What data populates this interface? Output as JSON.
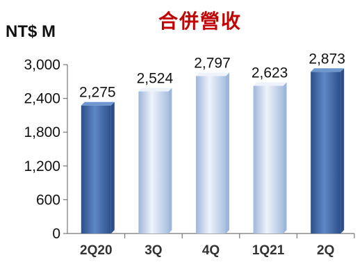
{
  "chart_data": {
    "type": "bar",
    "title": "合併營收",
    "unit_label": "NT$ M",
    "categories": [
      "2Q20",
      "3Q",
      "4Q",
      "1Q21",
      "2Q"
    ],
    "values": [
      2275,
      2524,
      2797,
      2623,
      2873
    ],
    "value_labels": [
      "2,275",
      "2,524",
      "2,797",
      "2,623",
      "2,873"
    ],
    "bar_styles": [
      "dark",
      "light",
      "light",
      "light",
      "dark"
    ],
    "yticks": [
      0,
      600,
      1200,
      1800,
      2400,
      3000
    ],
    "ytick_labels": [
      "0",
      "600",
      "1,200",
      "1,800",
      "2,400",
      "3,000"
    ],
    "ylim": [
      0,
      3000
    ],
    "grid": false,
    "colors": {
      "dark_top": "#6f97cf",
      "dark_mid": "#4a74b8",
      "dark_bottom": "#2c4f8a",
      "light_top": "#eef3fb",
      "light_mid": "#c9d8ee",
      "light_bottom": "#9eb6da",
      "title": "#c00000",
      "axis": "#777777"
    }
  }
}
